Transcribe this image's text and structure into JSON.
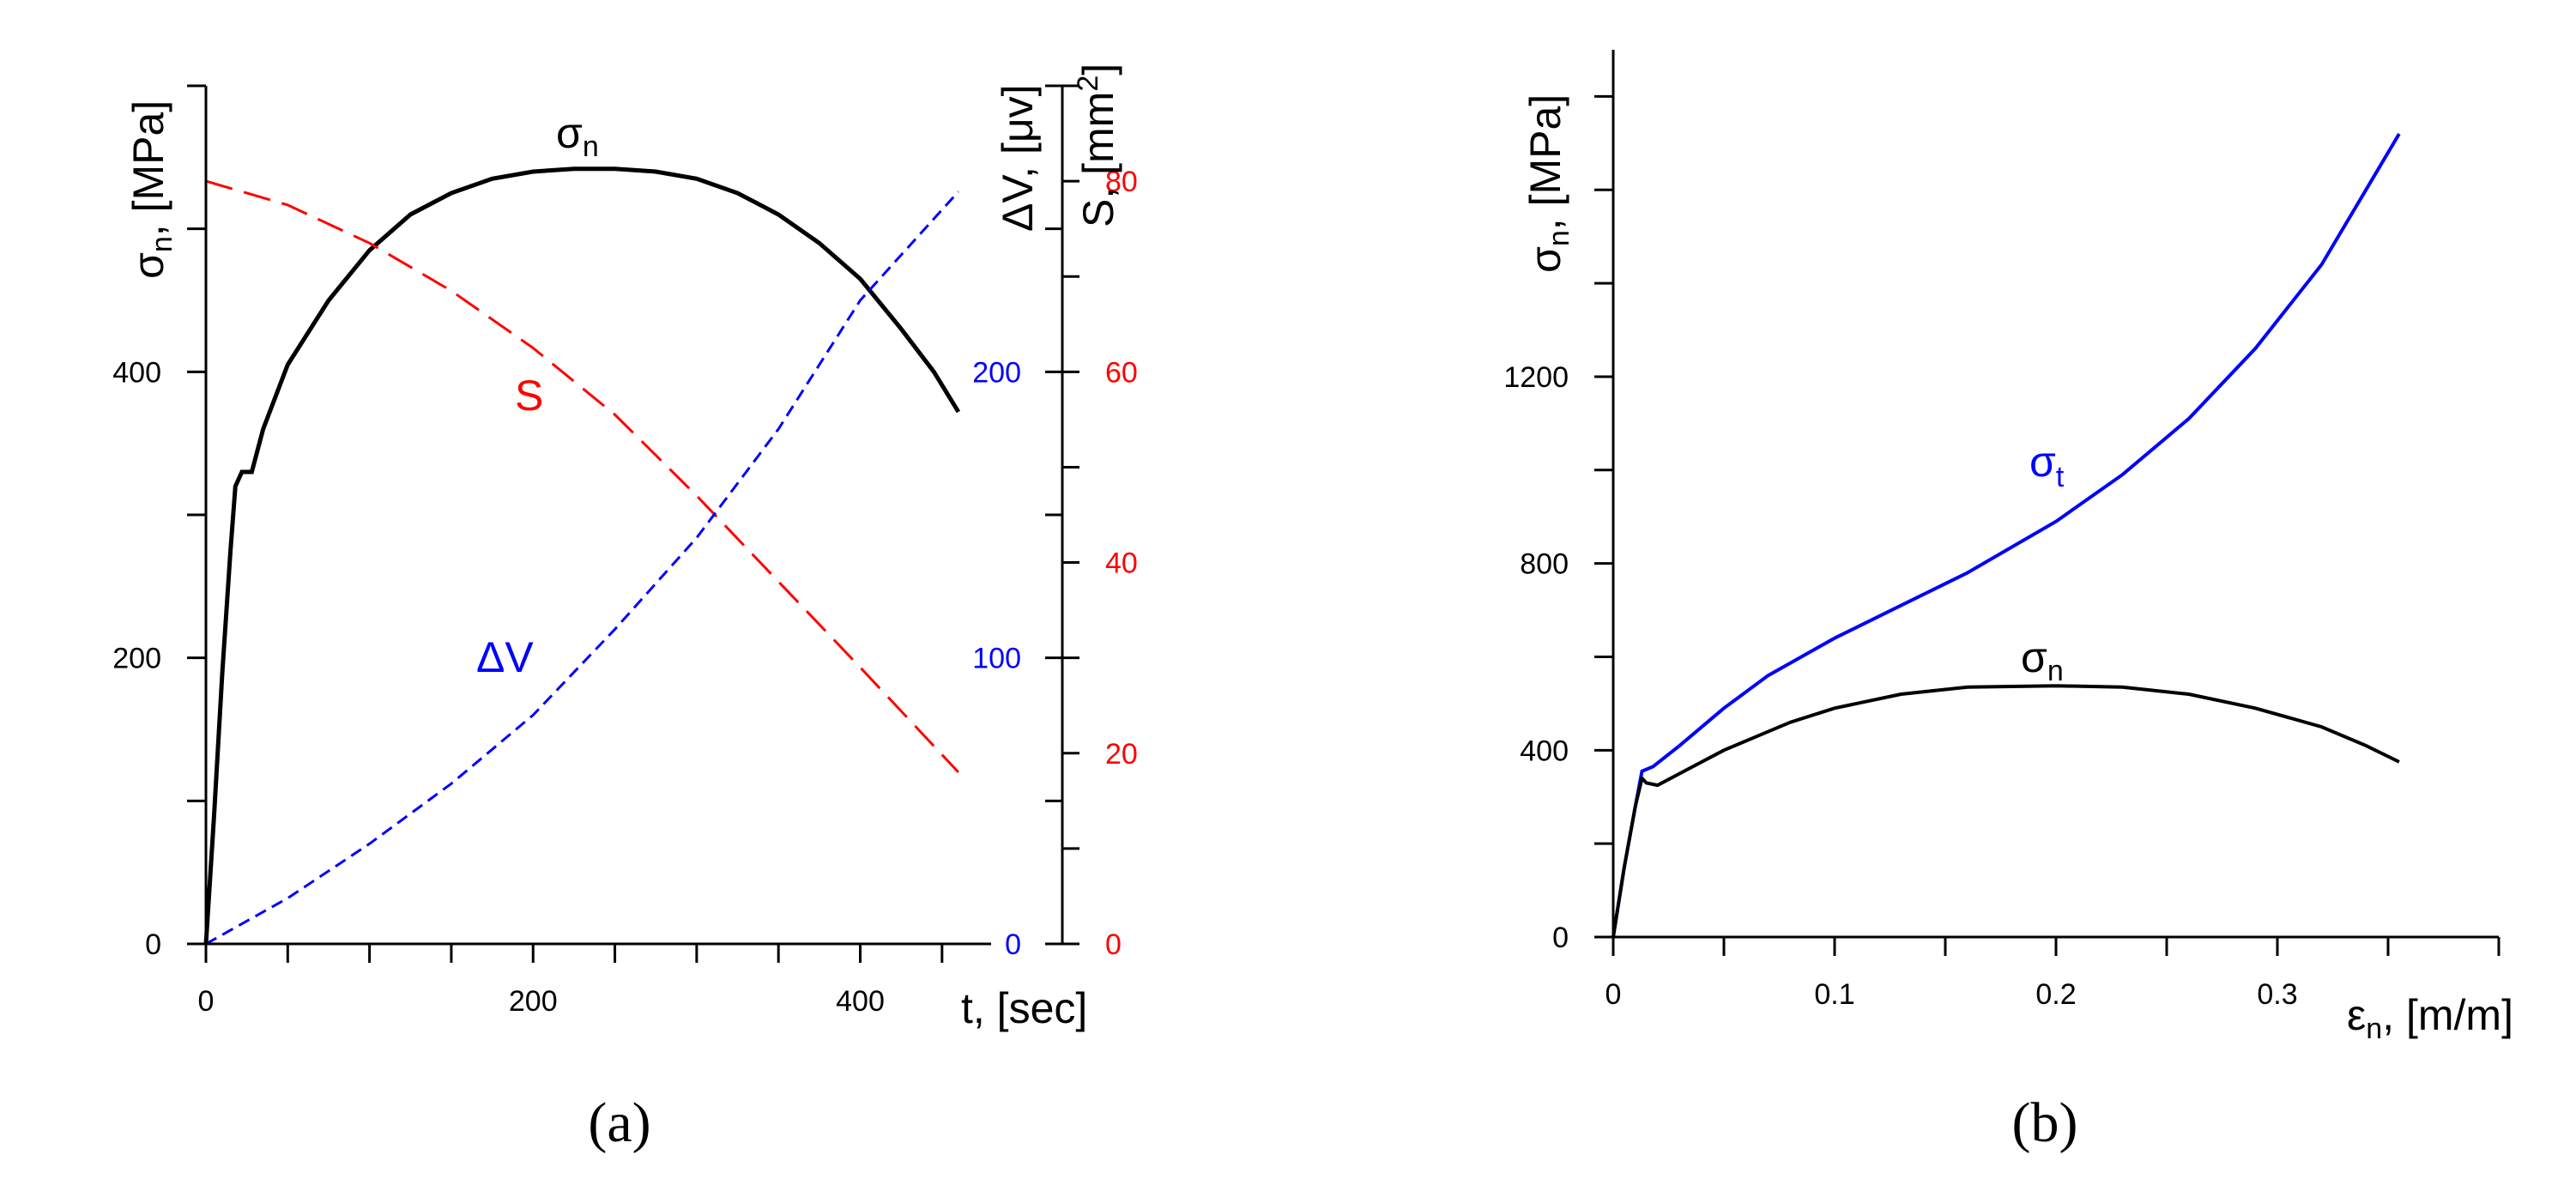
{
  "chart_data": [
    {
      "panel_label": "(a)",
      "type": "line",
      "x_axis": {
        "label": "t, [sec]",
        "range": [
          0,
          480
        ],
        "ticks": [
          0,
          200,
          400
        ]
      },
      "y_axes": {
        "left": {
          "label_main": "σ",
          "label_sub": "n",
          "label_rest": ", [MPa]",
          "color": "#000000",
          "range": [
            0,
            600
          ],
          "ticks": [
            0,
            200,
            400
          ]
        },
        "right_dv": {
          "label_main": "ΔV, [μv]",
          "color": "#0000ff",
          "range": [
            0,
            300
          ],
          "ticks": [
            0,
            100,
            200
          ]
        },
        "right_s": {
          "label_main": "S, [mm",
          "label_sup": "2",
          "label_rest": "]",
          "color": "#ff0000",
          "range": [
            0,
            90
          ],
          "ticks": [
            0,
            20,
            40,
            60,
            80
          ]
        }
      },
      "series": [
        {
          "name": "σn",
          "label_main": "σ",
          "label_sub": "n",
          "axis": "left",
          "color": "#000000",
          "style": "solid",
          "x": [
            0,
            5,
            10,
            15,
            18,
            22,
            28,
            35,
            50,
            75,
            100,
            125,
            150,
            175,
            200,
            225,
            250,
            275,
            300,
            325,
            350,
            375,
            400,
            425,
            445,
            460
          ],
          "y": [
            0,
            90,
            190,
            275,
            320,
            330,
            330,
            360,
            405,
            450,
            485,
            510,
            525,
            535,
            540,
            542,
            542,
            540,
            535,
            525,
            510,
            490,
            465,
            430,
            400,
            372
          ]
        },
        {
          "name": "S",
          "label_main": "S",
          "axis": "right_s",
          "color": "#ff0000",
          "style": "dashed",
          "x": [
            0,
            50,
            100,
            150,
            200,
            250,
            300,
            350,
            400,
            460
          ],
          "y": [
            80,
            77.5,
            73.5,
            68.5,
            62.5,
            55.5,
            47,
            38,
            29,
            18
          ]
        },
        {
          "name": "ΔV",
          "label_main": "ΔV",
          "axis": "right_dv",
          "color": "#0000ff",
          "style": "dashed",
          "x": [
            0,
            50,
            100,
            150,
            200,
            250,
            300,
            350,
            400,
            460
          ],
          "y": [
            0,
            16,
            35,
            56,
            80,
            110,
            142,
            180,
            225,
            263
          ]
        }
      ]
    },
    {
      "panel_label": "(b)",
      "type": "line",
      "x_axis": {
        "label_main": "ε",
        "label_sub": "n",
        "label_rest": ", [m/m]",
        "range": [
          0,
          0.4
        ],
        "ticks": [
          "0",
          "0.1",
          "0.2",
          "0.3"
        ]
      },
      "y_axis": {
        "label_main": "σ",
        "label_sub": "n",
        "label_rest": ", [MPa]",
        "range": [
          0,
          1900
        ],
        "ticks": [
          0,
          400,
          800,
          1200
        ]
      },
      "series": [
        {
          "name": "σt",
          "label_main": "σ",
          "label_sub": "t",
          "color": "#0000ff",
          "style": "solid",
          "x": [
            0,
            0.005,
            0.01,
            0.013,
            0.018,
            0.03,
            0.05,
            0.07,
            0.1,
            0.13,
            0.16,
            0.2,
            0.23,
            0.26,
            0.29,
            0.32,
            0.34,
            0.355
          ],
          "y": [
            0,
            150,
            280,
            355,
            365,
            410,
            490,
            560,
            640,
            710,
            780,
            890,
            990,
            1110,
            1260,
            1440,
            1600,
            1720
          ]
        },
        {
          "name": "σn",
          "label_main": "σ",
          "label_sub": "n",
          "color": "#000000",
          "style": "solid",
          "x": [
            0,
            0.005,
            0.01,
            0.013,
            0.015,
            0.02,
            0.03,
            0.05,
            0.08,
            0.1,
            0.13,
            0.16,
            0.2,
            0.23,
            0.26,
            0.29,
            0.32,
            0.34,
            0.355
          ],
          "y": [
            0,
            150,
            280,
            340,
            330,
            325,
            350,
            400,
            460,
            490,
            520,
            535,
            538,
            535,
            520,
            490,
            450,
            410,
            375
          ]
        }
      ]
    }
  ]
}
